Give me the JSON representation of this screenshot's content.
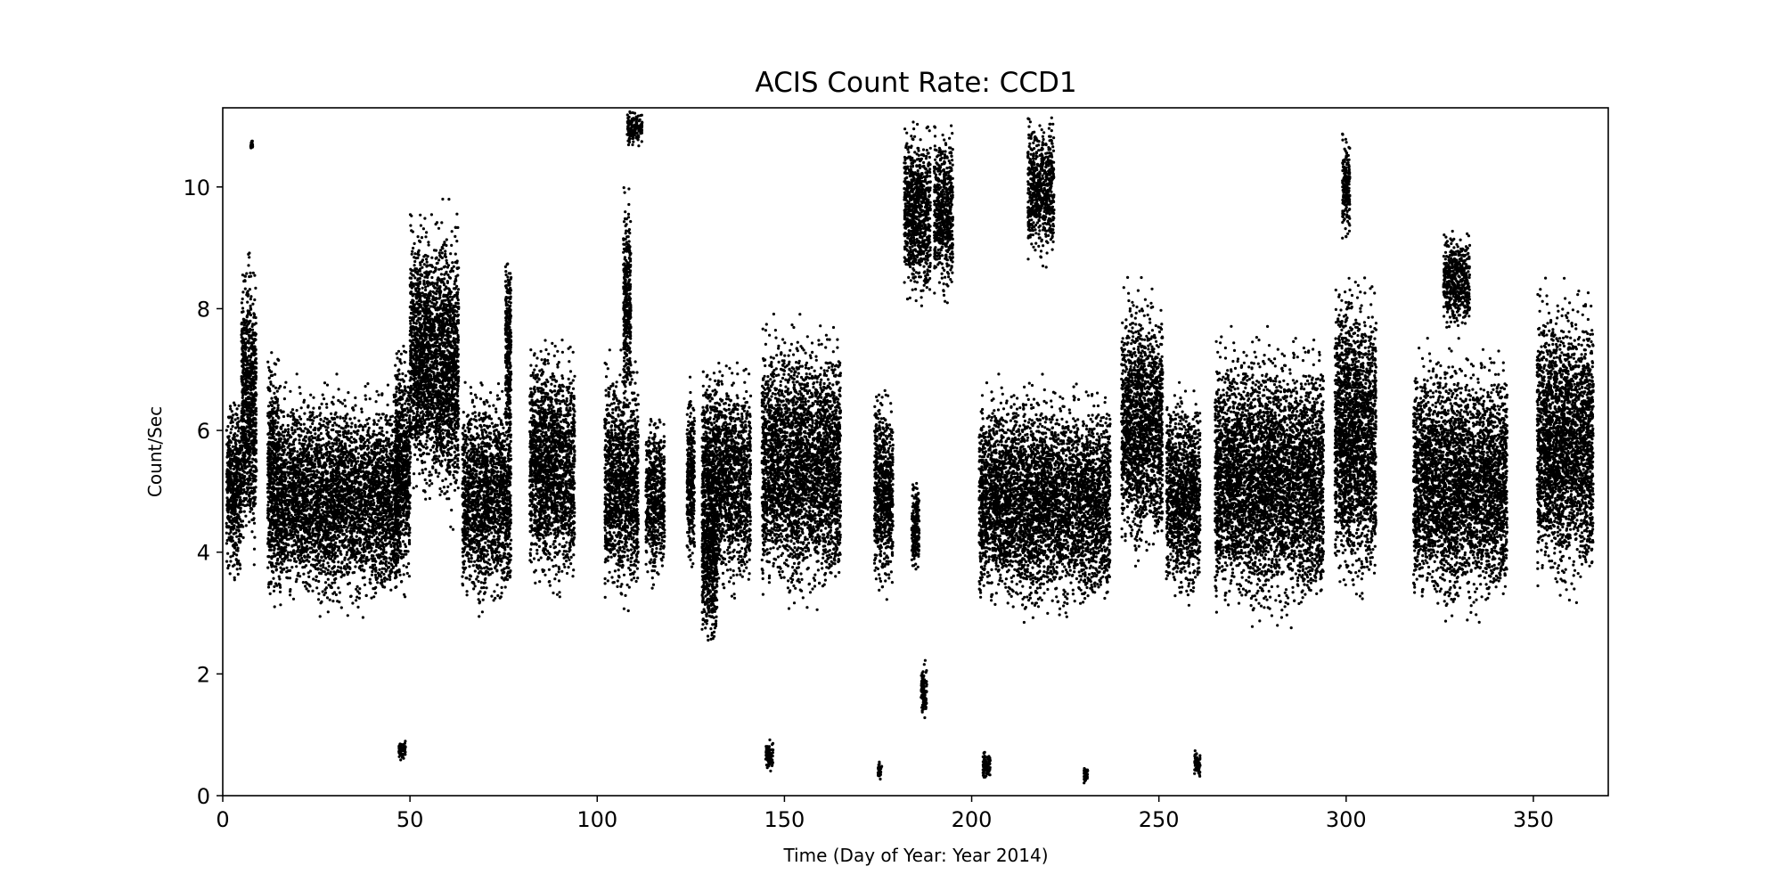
{
  "chart_data": {
    "type": "scatter",
    "title": "ACIS Count Rate: CCD1",
    "xlabel": "Time (Day of Year: Year 2014)",
    "ylabel": "Count/Sec",
    "xlim": [
      0,
      370
    ],
    "ylim": [
      0,
      11.3
    ],
    "x_ticks": [
      0,
      50,
      100,
      150,
      200,
      250,
      300,
      350
    ],
    "y_ticks": [
      0,
      2,
      4,
      6,
      8,
      10
    ],
    "grid": false,
    "marker_color": "#000000",
    "clusters": [
      {
        "x": [
          1,
          5
        ],
        "y": [
          3.3,
          6.8
        ]
      },
      {
        "x": [
          5,
          9
        ],
        "y": [
          3.4,
          9.3
        ]
      },
      {
        "x": [
          7.5,
          8
        ],
        "y": [
          10.6,
          10.8
        ]
      },
      {
        "x": [
          12,
          15
        ],
        "y": [
          2.8,
          7.6
        ]
      },
      {
        "x": [
          15,
          47
        ],
        "y": [
          2.8,
          7.0
        ]
      },
      {
        "x": [
          47,
          49
        ],
        "y": [
          0.55,
          0.95
        ]
      },
      {
        "x": [
          46,
          50
        ],
        "y": [
          3.0,
          7.8
        ]
      },
      {
        "x": [
          50,
          58
        ],
        "y": [
          4.5,
          9.9
        ]
      },
      {
        "x": [
          58,
          63
        ],
        "y": [
          4.2,
          9.9
        ]
      },
      {
        "x": [
          64,
          77
        ],
        "y": [
          2.8,
          7.0
        ]
      },
      {
        "x": [
          75.5,
          77
        ],
        "y": [
          5.5,
          9.3
        ]
      },
      {
        "x": [
          82,
          94
        ],
        "y": [
          3.0,
          7.8
        ]
      },
      {
        "x": [
          102,
          111
        ],
        "y": [
          2.9,
          7.4
        ]
      },
      {
        "x": [
          107,
          109
        ],
        "y": [
          6.0,
          10.2
        ]
      },
      {
        "x": [
          108,
          112
        ],
        "y": [
          10.6,
          11.3
        ]
      },
      {
        "x": [
          113,
          118
        ],
        "y": [
          3.3,
          6.5
        ]
      },
      {
        "x": [
          124,
          126
        ],
        "y": [
          3.4,
          7.1
        ]
      },
      {
        "x": [
          128,
          132
        ],
        "y": [
          2.2,
          5.5
        ]
      },
      {
        "x": [
          128,
          141
        ],
        "y": [
          3.0,
          7.4
        ]
      },
      {
        "x": [
          145,
          147
        ],
        "y": [
          0.3,
          1.0
        ]
      },
      {
        "x": [
          144,
          165
        ],
        "y": [
          2.9,
          8.0
        ]
      },
      {
        "x": [
          174,
          179
        ],
        "y": [
          3.0,
          7.0
        ]
      },
      {
        "x": [
          175,
          176
        ],
        "y": [
          0.25,
          0.6
        ]
      },
      {
        "x": [
          184,
          186
        ],
        "y": [
          3.5,
          5.4
        ]
      },
      {
        "x": [
          182,
          189
        ],
        "y": [
          7.8,
          11.3
        ]
      },
      {
        "x": [
          186.5,
          188
        ],
        "y": [
          1.1,
          2.3
        ]
      },
      {
        "x": [
          190,
          195
        ],
        "y": [
          8.0,
          11.2
        ]
      },
      {
        "x": [
          203,
          205
        ],
        "y": [
          0.2,
          0.8
        ]
      },
      {
        "x": [
          202,
          237
        ],
        "y": [
          2.7,
          7.0
        ]
      },
      {
        "x": [
          215,
          222
        ],
        "y": [
          8.6,
          11.3
        ]
      },
      {
        "x": [
          230,
          231
        ],
        "y": [
          0.15,
          0.55
        ]
      },
      {
        "x": [
          240,
          251
        ],
        "y": [
          3.6,
          8.6
        ]
      },
      {
        "x": [
          252,
          261
        ],
        "y": [
          2.9,
          7.0
        ]
      },
      {
        "x": [
          259.5,
          261
        ],
        "y": [
          0.25,
          0.8
        ]
      },
      {
        "x": [
          265,
          294
        ],
        "y": [
          2.6,
          7.8
        ]
      },
      {
        "x": [
          297,
          308
        ],
        "y": [
          2.9,
          8.9
        ]
      },
      {
        "x": [
          299,
          301
        ],
        "y": [
          9.0,
          11.0
        ]
      },
      {
        "x": [
          318,
          343
        ],
        "y": [
          2.7,
          7.6
        ]
      },
      {
        "x": [
          326,
          333
        ],
        "y": [
          7.5,
          9.4
        ]
      },
      {
        "x": [
          351,
          366
        ],
        "y": [
          3.0,
          8.6
        ]
      }
    ]
  }
}
